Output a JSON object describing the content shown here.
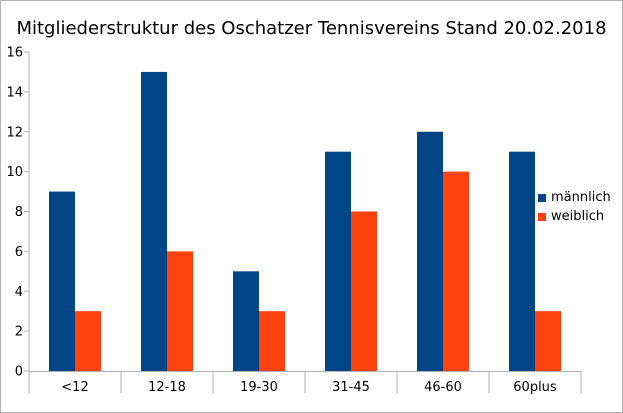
{
  "chart_data": {
    "type": "bar",
    "title": "Mitgliederstruktur des Oschatzer Tennisvereins Stand 20.02.2018",
    "categories": [
      "<12",
      "12-18",
      "19-30",
      "31-45",
      "46-60",
      "60plus"
    ],
    "series": [
      {
        "name": "männlich",
        "values": [
          9,
          15,
          5,
          11,
          12,
          11
        ],
        "color": "#004586"
      },
      {
        "name": "weiblich",
        "values": [
          3,
          6,
          3,
          8,
          10,
          3
        ],
        "color": "#ff420e"
      }
    ],
    "xlabel": "",
    "ylabel": "",
    "ylim": [
      0,
      16
    ],
    "yticks": [
      0,
      2,
      4,
      6,
      8,
      10,
      12,
      14,
      16
    ],
    "grid": false,
    "legend": "right"
  }
}
